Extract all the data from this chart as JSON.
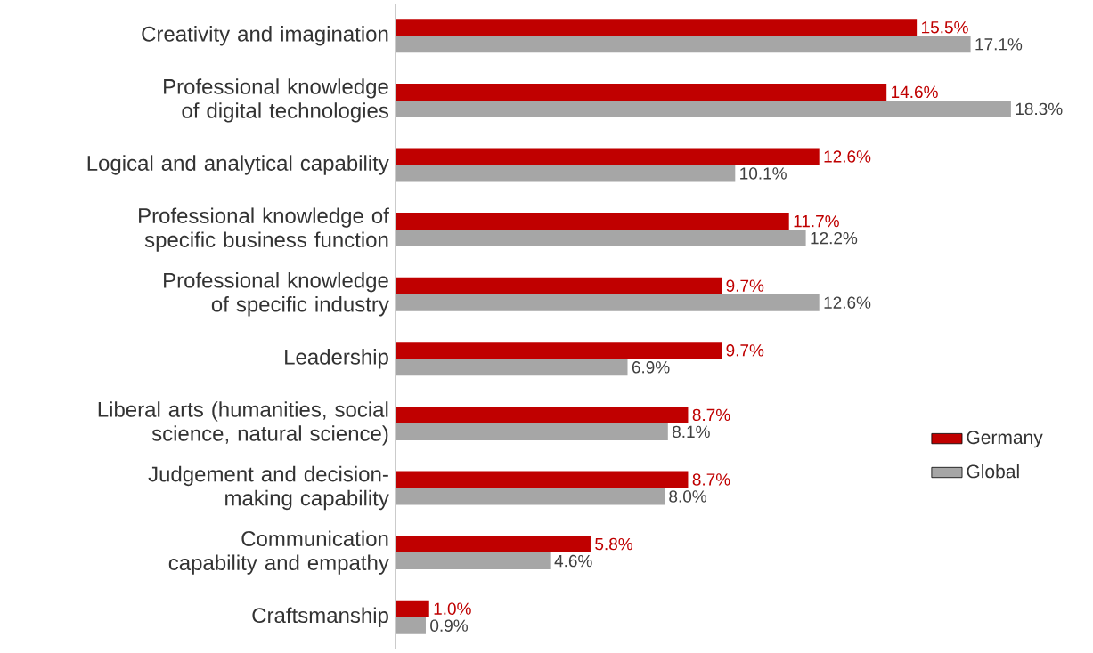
{
  "chart_data": {
    "type": "bar",
    "orientation": "horizontal",
    "tick_labels": "y",
    "legend": "right",
    "categories": [
      "Creativity and imagination",
      "Professional knowledge of digital technologies",
      "Logical and analytical capability",
      "Professional knowledge of specific business function",
      "Professional knowledge of specific industry",
      "Leadership",
      "Liberal arts (humanities, social science, natural science)",
      "Judgement and decision-making capability",
      "Communication capability and empathy",
      "Craftsmanship"
    ],
    "series": [
      {
        "name": "Germany",
        "color": "#c00000",
        "values": [
          15.5,
          14.6,
          12.6,
          11.7,
          9.7,
          9.7,
          8.7,
          8.7,
          5.8,
          1.0
        ],
        "value_labels": [
          "15.5%",
          "14.6%",
          "12.6%",
          "11.7%",
          "9.7%",
          "9.7%",
          "8.7%",
          "8.7%",
          "5.8%",
          "1.0%"
        ]
      },
      {
        "name": "Global",
        "color": "#a6a6a6",
        "values": [
          17.1,
          18.3,
          10.1,
          12.2,
          12.6,
          6.9,
          8.1,
          8.0,
          4.6,
          0.9
        ],
        "value_labels": [
          "17.1%",
          "18.3%",
          "10.1%",
          "12.2%",
          "12.6%",
          "6.9%",
          "8.1%",
          "8.0%",
          "4.6%",
          "0.9%"
        ]
      }
    ]
  }
}
